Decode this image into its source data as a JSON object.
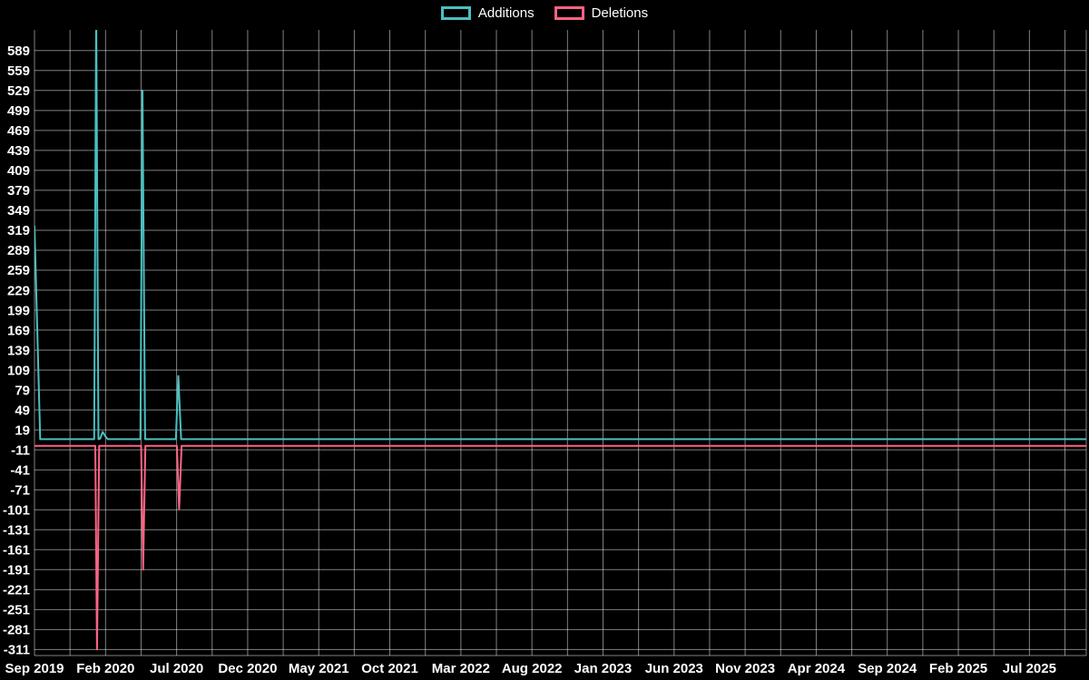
{
  "legend": {
    "additions_label": "Additions",
    "deletions_label": "Deletions"
  },
  "colors": {
    "additions": "#4bc0c0",
    "deletions": "#ff6384",
    "grid": "rgba(255,255,255,0.5)",
    "axis_text": "#ffffff",
    "background": "#000000"
  },
  "chart_data": {
    "type": "line",
    "title": "",
    "xlabel": "",
    "ylabel": "",
    "legend_position": "top-center",
    "grid": true,
    "x_axis_labels": [
      "Sep 2019",
      "Feb 2020",
      "Jul 2020",
      "Dec 2020",
      "May 2021",
      "Oct 2021",
      "Mar 2022",
      "Aug 2022",
      "Jan 2023",
      "Jun 2023",
      "Nov 2023",
      "Apr 2024",
      "Sep 2024",
      "Feb 2025",
      "Jul 2025"
    ],
    "x_label_months": [
      0,
      5,
      10,
      15,
      20,
      25,
      30,
      35,
      40,
      45,
      50,
      55,
      60,
      65,
      70
    ],
    "x_range_months": [
      0,
      74
    ],
    "grid_step_months": 2.5,
    "y_ticks": [
      589,
      559,
      529,
      499,
      469,
      439,
      409,
      379,
      349,
      319,
      289,
      259,
      229,
      199,
      169,
      139,
      109,
      79,
      49,
      19,
      -11,
      -41,
      -71,
      -101,
      -131,
      -161,
      -191,
      -221,
      -251,
      -281,
      -311
    ],
    "y_range": [
      -320,
      620
    ],
    "series": [
      {
        "name": "Additions",
        "color_key": "additions",
        "points": [
          [
            0,
            325
          ],
          [
            0.4,
            5
          ],
          [
            4.2,
            5
          ],
          [
            4.34,
            650
          ],
          [
            4.5,
            5
          ],
          [
            4.62,
            6
          ],
          [
            4.8,
            16
          ],
          [
            5.0,
            9
          ],
          [
            5.15,
            5
          ],
          [
            7.45,
            5
          ],
          [
            7.6,
            529
          ],
          [
            7.78,
            5
          ],
          [
            9.95,
            5
          ],
          [
            10.12,
            100
          ],
          [
            10.32,
            5
          ],
          [
            74,
            5
          ]
        ]
      },
      {
        "name": "Deletions",
        "color_key": "deletions",
        "points": [
          [
            0,
            -5
          ],
          [
            4.28,
            -5
          ],
          [
            4.4,
            -311
          ],
          [
            4.55,
            -5
          ],
          [
            7.5,
            -5
          ],
          [
            7.64,
            -191
          ],
          [
            7.8,
            -5
          ],
          [
            10.02,
            -5
          ],
          [
            10.18,
            -100
          ],
          [
            10.35,
            -5
          ],
          [
            74,
            -5
          ]
        ]
      }
    ]
  }
}
